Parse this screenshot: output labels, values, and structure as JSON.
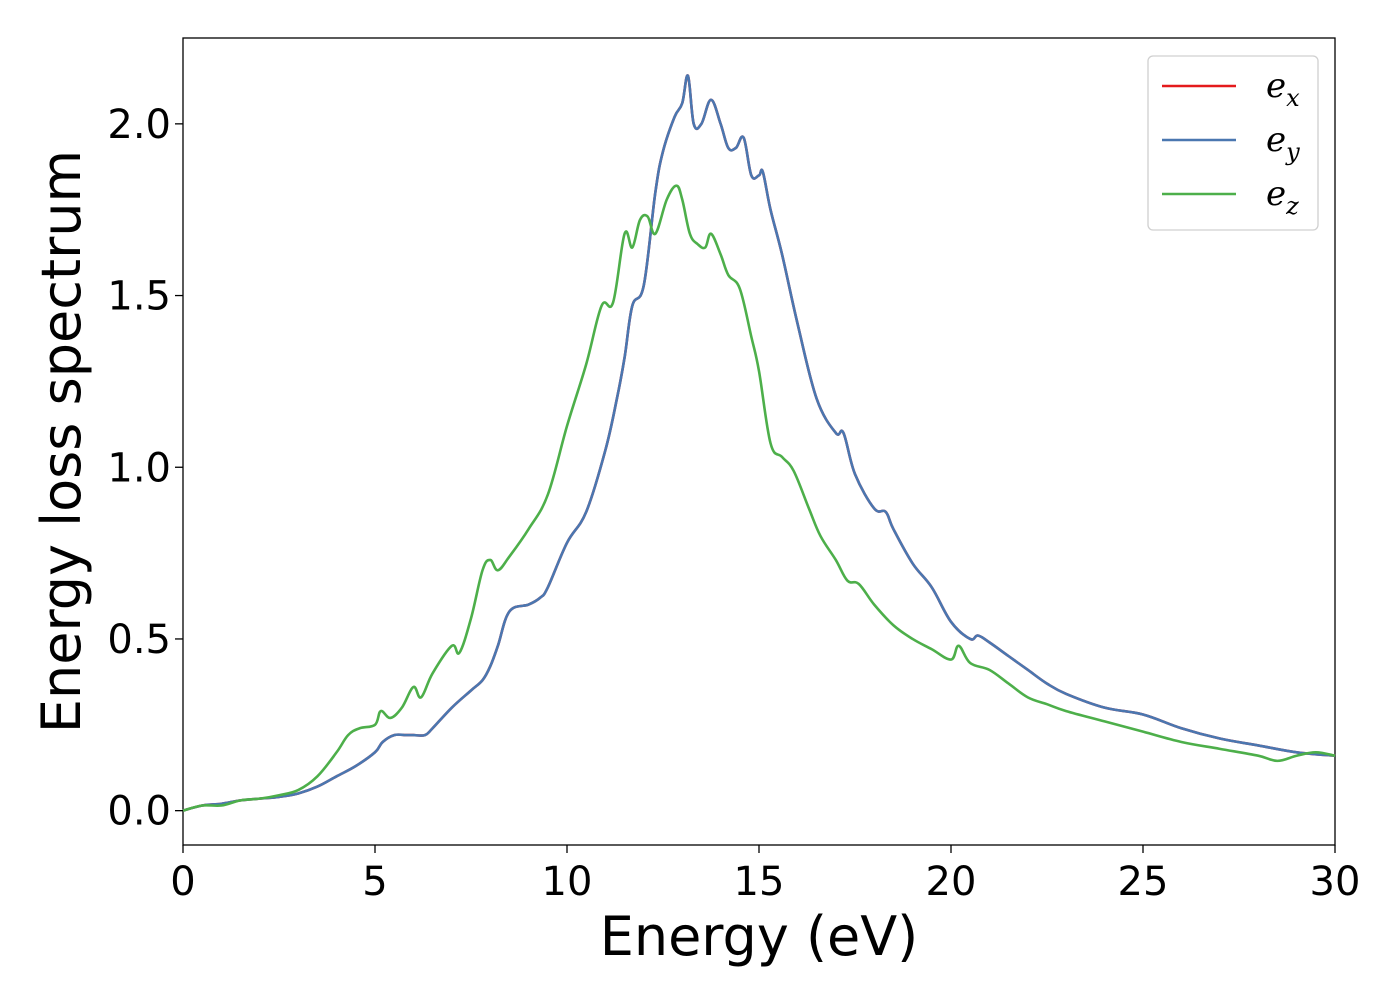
{
  "chart_data": {
    "type": "line",
    "xlabel": "Energy (eV)",
    "ylabel": "Energy loss spectrum",
    "xlim": [
      0,
      30
    ],
    "ylim": [
      -0.1,
      2.25
    ],
    "xticks": [
      0,
      5,
      10,
      15,
      20,
      25,
      30
    ],
    "xtick_labels": [
      "0",
      "5",
      "10",
      "15",
      "20",
      "25",
      "30"
    ],
    "yticks": [
      0.0,
      0.5,
      1.0,
      1.5,
      2.0
    ],
    "ytick_labels": [
      "0.0",
      "0.5",
      "1.0",
      "1.5",
      "2.0"
    ],
    "grid": false,
    "legend_position": "top-right",
    "series": [
      {
        "name": "e_x",
        "label_main": "e",
        "label_sub": "x",
        "color": "#e41a1c",
        "x": [
          0,
          0.5,
          1,
          1.5,
          2,
          2.5,
          3,
          3.5,
          4,
          4.5,
          5,
          5.2,
          5.5,
          5.8,
          6,
          6.3,
          6.5,
          7,
          7.5,
          7.8,
          8,
          8.2,
          8.5,
          9,
          9.3,
          9.5,
          10,
          10.5,
          11,
          11.3,
          11.5,
          11.7,
          12,
          12.3,
          12.5,
          12.8,
          13.0,
          13.15,
          13.3,
          13.5,
          13.75,
          14.0,
          14.2,
          14.4,
          14.6,
          14.8,
          15.0,
          15.1,
          15.3,
          15.6,
          16.0,
          16.5,
          17.0,
          17.2,
          17.5,
          18.0,
          18.3,
          18.5,
          19.0,
          19.5,
          20.0,
          20.5,
          20.7,
          21.0,
          21.5,
          22.0,
          22.5,
          23.0,
          24.0,
          25.0,
          26.0,
          27.0,
          28.0,
          29.0,
          30.0
        ],
        "y": [
          0.0,
          0.015,
          0.02,
          0.03,
          0.035,
          0.04,
          0.05,
          0.07,
          0.1,
          0.13,
          0.17,
          0.2,
          0.22,
          0.22,
          0.22,
          0.22,
          0.24,
          0.3,
          0.35,
          0.38,
          0.42,
          0.48,
          0.58,
          0.6,
          0.62,
          0.65,
          0.78,
          0.87,
          1.05,
          1.2,
          1.32,
          1.47,
          1.53,
          1.8,
          1.92,
          2.02,
          2.06,
          2.14,
          2.0,
          2.0,
          2.07,
          2.0,
          1.93,
          1.93,
          1.96,
          1.85,
          1.85,
          1.86,
          1.75,
          1.62,
          1.42,
          1.2,
          1.1,
          1.1,
          0.98,
          0.88,
          0.87,
          0.82,
          0.72,
          0.65,
          0.55,
          0.5,
          0.51,
          0.49,
          0.45,
          0.41,
          0.37,
          0.34,
          0.3,
          0.28,
          0.24,
          0.21,
          0.19,
          0.17,
          0.16
        ]
      },
      {
        "name": "e_y",
        "label_main": "e",
        "label_sub": "y",
        "color": "#4a77b0",
        "x": [
          0,
          0.5,
          1,
          1.5,
          2,
          2.5,
          3,
          3.5,
          4,
          4.5,
          5,
          5.2,
          5.5,
          5.8,
          6,
          6.3,
          6.5,
          7,
          7.5,
          7.8,
          8,
          8.2,
          8.5,
          9,
          9.3,
          9.5,
          10,
          10.5,
          11,
          11.3,
          11.5,
          11.7,
          12,
          12.3,
          12.5,
          12.8,
          13.0,
          13.15,
          13.3,
          13.5,
          13.75,
          14.0,
          14.2,
          14.4,
          14.6,
          14.8,
          15.0,
          15.1,
          15.3,
          15.6,
          16.0,
          16.5,
          17.0,
          17.2,
          17.5,
          18.0,
          18.3,
          18.5,
          19.0,
          19.5,
          20.0,
          20.5,
          20.7,
          21.0,
          21.5,
          22.0,
          22.5,
          23.0,
          24.0,
          25.0,
          26.0,
          27.0,
          28.0,
          29.0,
          30.0
        ],
        "y": [
          0.0,
          0.015,
          0.02,
          0.03,
          0.035,
          0.04,
          0.05,
          0.07,
          0.1,
          0.13,
          0.17,
          0.2,
          0.22,
          0.22,
          0.22,
          0.22,
          0.24,
          0.3,
          0.35,
          0.38,
          0.42,
          0.48,
          0.58,
          0.6,
          0.62,
          0.65,
          0.78,
          0.87,
          1.05,
          1.2,
          1.32,
          1.47,
          1.53,
          1.8,
          1.92,
          2.02,
          2.06,
          2.14,
          2.0,
          2.0,
          2.07,
          2.0,
          1.93,
          1.93,
          1.96,
          1.85,
          1.85,
          1.86,
          1.75,
          1.62,
          1.42,
          1.2,
          1.1,
          1.1,
          0.98,
          0.88,
          0.87,
          0.82,
          0.72,
          0.65,
          0.55,
          0.5,
          0.51,
          0.49,
          0.45,
          0.41,
          0.37,
          0.34,
          0.3,
          0.28,
          0.24,
          0.21,
          0.19,
          0.17,
          0.16
        ]
      },
      {
        "name": "e_z",
        "label_main": "e",
        "label_sub": "z",
        "color": "#4daf4a",
        "x": [
          0,
          0.5,
          1,
          1.5,
          2,
          2.5,
          3,
          3.5,
          4,
          4.3,
          4.6,
          5.0,
          5.15,
          5.4,
          5.7,
          6.0,
          6.2,
          6.5,
          7.0,
          7.2,
          7.5,
          7.8,
          8.0,
          8.2,
          8.5,
          9.0,
          9.5,
          10.0,
          10.5,
          10.9,
          11.2,
          11.5,
          11.7,
          11.9,
          12.1,
          12.3,
          12.6,
          12.85,
          13.0,
          13.2,
          13.4,
          13.6,
          13.75,
          14.0,
          14.2,
          14.5,
          14.8,
          15.0,
          15.3,
          15.6,
          15.9,
          16.3,
          16.6,
          17.0,
          17.3,
          17.6,
          18.0,
          18.5,
          19.0,
          19.5,
          20.0,
          20.2,
          20.5,
          21.0,
          21.5,
          22.0,
          22.5,
          23.0,
          24.0,
          25.0,
          26.0,
          27.0,
          28.0,
          28.5,
          29.0,
          29.5,
          30.0
        ],
        "y": [
          0.0,
          0.015,
          0.015,
          0.03,
          0.035,
          0.045,
          0.06,
          0.1,
          0.17,
          0.22,
          0.24,
          0.25,
          0.29,
          0.27,
          0.3,
          0.36,
          0.33,
          0.4,
          0.48,
          0.46,
          0.56,
          0.7,
          0.73,
          0.7,
          0.74,
          0.82,
          0.92,
          1.12,
          1.3,
          1.47,
          1.48,
          1.68,
          1.64,
          1.72,
          1.73,
          1.68,
          1.78,
          1.82,
          1.78,
          1.68,
          1.65,
          1.64,
          1.68,
          1.62,
          1.56,
          1.52,
          1.38,
          1.28,
          1.07,
          1.03,
          0.99,
          0.88,
          0.8,
          0.73,
          0.67,
          0.66,
          0.6,
          0.54,
          0.5,
          0.47,
          0.44,
          0.48,
          0.43,
          0.41,
          0.37,
          0.33,
          0.31,
          0.29,
          0.26,
          0.23,
          0.2,
          0.18,
          0.16,
          0.145,
          0.16,
          0.17,
          0.16
        ]
      }
    ]
  }
}
